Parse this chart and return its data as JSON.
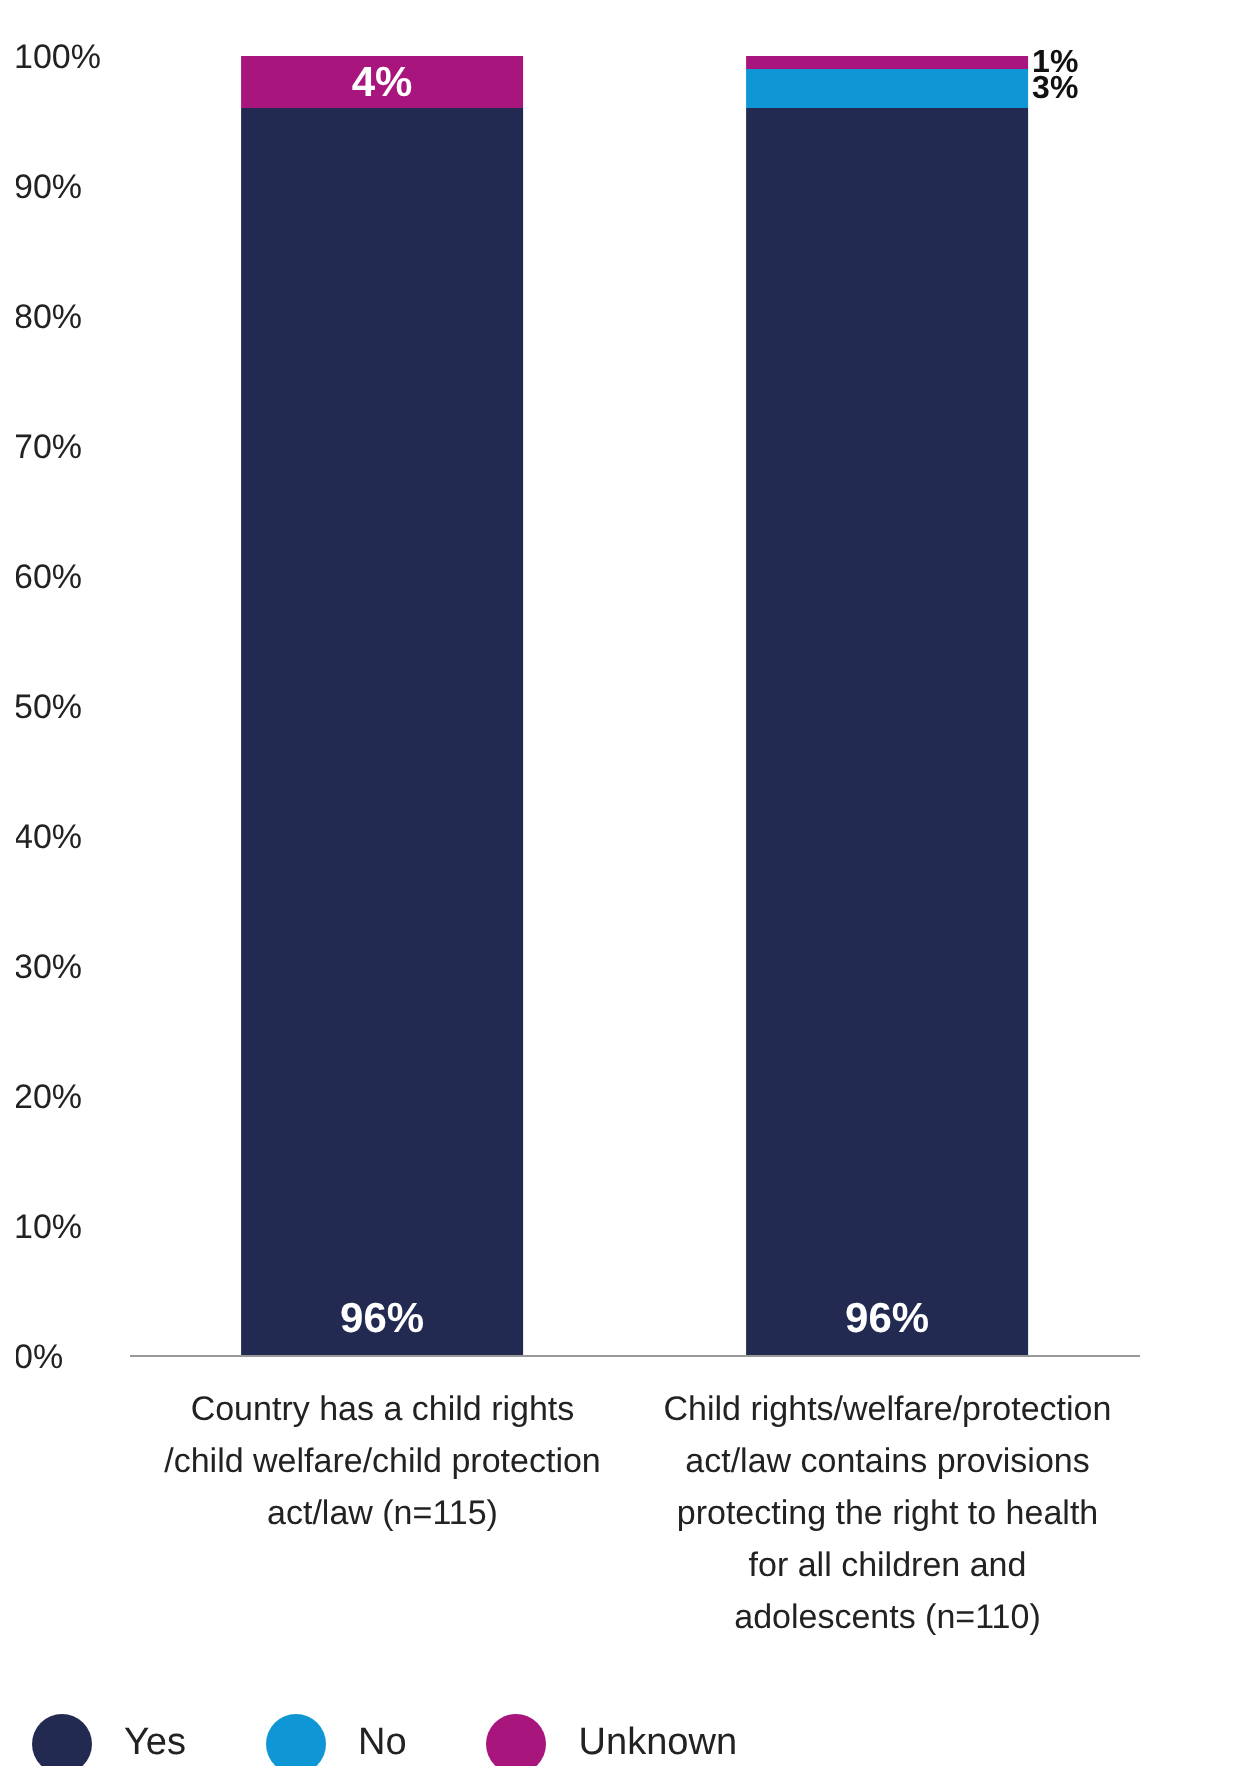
{
  "chart_data": {
    "type": "bar",
    "stacked": true,
    "categories": [
      "Country has a child rights /child welfare/child protection act/law (n=115)",
      "Child rights/welfare/protection act/law contains provisions protecting the right to health for all children and adolescents (n=110)"
    ],
    "series": [
      {
        "name": "Yes",
        "color": "#222a52",
        "values": [
          96,
          96
        ],
        "value_labels": [
          "96%",
          "96%"
        ]
      },
      {
        "name": "No",
        "color": "#0f96d4",
        "values": [
          0,
          3
        ],
        "value_labels": [
          null,
          "3%"
        ]
      },
      {
        "name": "Unknown",
        "color": "#a8157c",
        "values": [
          4,
          1
        ],
        "value_labels": [
          "4%",
          "1%"
        ]
      }
    ],
    "ylim": [
      0,
      100
    ],
    "yticks": [
      {
        "value": 0,
        "label": "0%"
      },
      {
        "value": 10,
        "label": "10%"
      },
      {
        "value": 20,
        "label": "20%"
      },
      {
        "value": 30,
        "label": "30%"
      },
      {
        "value": 40,
        "label": "40%"
      },
      {
        "value": 50,
        "label": "50%"
      },
      {
        "value": 60,
        "label": "60%"
      },
      {
        "value": 70,
        "label": "70%"
      },
      {
        "value": 80,
        "label": "80%"
      },
      {
        "value": 90,
        "label": "90%"
      },
      {
        "value": 100,
        "label": "100%"
      }
    ],
    "grid": false,
    "legend": "bottom left"
  }
}
